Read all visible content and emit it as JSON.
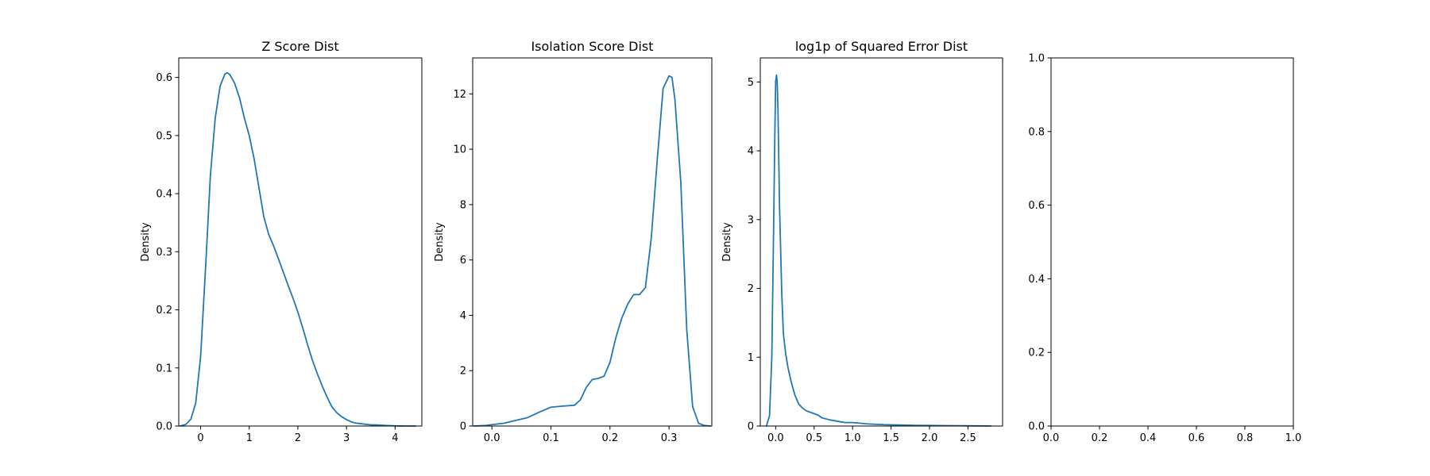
{
  "chart_data": [
    {
      "type": "line",
      "title": "Z Score Dist",
      "xlabel": "",
      "ylabel": "Density",
      "xlim": [
        -0.45,
        4.55
      ],
      "ylim": [
        0,
        0.6336
      ],
      "xticks": [
        0,
        1,
        2,
        3,
        4
      ],
      "xtick_labels": [
        "0",
        "1",
        "2",
        "3",
        "4"
      ],
      "yticks": [
        0,
        0.1,
        0.2,
        0.3,
        0.4,
        0.5,
        0.6
      ],
      "ytick_labels": [
        "0.0",
        "0.1",
        "0.2",
        "0.3",
        "0.4",
        "0.5",
        "0.6"
      ],
      "series": [
        {
          "color": "#1f77b4",
          "x": [
            -0.42,
            -0.3,
            -0.2,
            -0.1,
            0.0,
            0.1,
            0.2,
            0.3,
            0.4,
            0.5,
            0.55,
            0.6,
            0.7,
            0.8,
            0.9,
            1.0,
            1.1,
            1.2,
            1.3,
            1.4,
            1.5,
            1.6,
            1.7,
            1.8,
            1.9,
            2.0,
            2.1,
            2.2,
            2.3,
            2.4,
            2.5,
            2.6,
            2.7,
            2.8,
            2.9,
            3.0,
            3.1,
            3.2,
            3.3,
            3.4,
            3.5,
            3.6,
            3.7,
            3.8,
            3.9,
            4.0,
            4.1,
            4.2,
            4.3,
            4.42
          ],
          "values": [
            0.0,
            0.003,
            0.012,
            0.04,
            0.12,
            0.27,
            0.43,
            0.53,
            0.585,
            0.606,
            0.608,
            0.605,
            0.59,
            0.565,
            0.53,
            0.5,
            0.46,
            0.41,
            0.36,
            0.33,
            0.31,
            0.288,
            0.265,
            0.242,
            0.22,
            0.196,
            0.169,
            0.14,
            0.113,
            0.09,
            0.069,
            0.05,
            0.033,
            0.023,
            0.016,
            0.011,
            0.007,
            0.005,
            0.004,
            0.003,
            0.002,
            0.002,
            0.0015,
            0.001,
            0.0006,
            0.0003,
            0.0001,
            0.0,
            0.0,
            0.0
          ]
        }
      ]
    },
    {
      "type": "line",
      "title": "Isolation Score Dist",
      "xlabel": "",
      "ylabel": "Density",
      "xlim": [
        -0.0325,
        0.3725
      ],
      "ylim": [
        0,
        13.3
      ],
      "xticks": [
        0.0,
        0.1,
        0.2,
        0.3
      ],
      "xtick_labels": [
        "0.0",
        "0.1",
        "0.2",
        "0.3"
      ],
      "yticks": [
        0,
        2,
        4,
        6,
        8,
        10,
        12
      ],
      "ytick_labels": [
        "0",
        "2",
        "4",
        "6",
        "8",
        "10",
        "12"
      ],
      "series": [
        {
          "color": "#1f77b4",
          "x": [
            -0.03,
            -0.01,
            0.0,
            0.02,
            0.04,
            0.06,
            0.08,
            0.1,
            0.12,
            0.14,
            0.15,
            0.16,
            0.17,
            0.18,
            0.19,
            0.2,
            0.21,
            0.22,
            0.23,
            0.24,
            0.25,
            0.26,
            0.27,
            0.28,
            0.29,
            0.3,
            0.305,
            0.31,
            0.32,
            0.33,
            0.34,
            0.35,
            0.36,
            0.37
          ],
          "values": [
            0.0,
            0.02,
            0.05,
            0.1,
            0.2,
            0.3,
            0.5,
            0.68,
            0.72,
            0.75,
            0.95,
            1.4,
            1.68,
            1.72,
            1.8,
            2.3,
            3.2,
            3.9,
            4.4,
            4.75,
            4.75,
            5.0,
            6.8,
            9.6,
            12.2,
            12.65,
            12.6,
            11.8,
            8.8,
            3.5,
            0.7,
            0.1,
            0.02,
            0.0
          ]
        }
      ]
    },
    {
      "type": "line",
      "title": "log1p of Squared Error Dist",
      "xlabel": "",
      "ylabel": "Density",
      "xlim": [
        -0.2,
        2.95
      ],
      "ylim": [
        0,
        5.35
      ],
      "xticks": [
        0.0,
        0.5,
        1.0,
        1.5,
        2.0,
        2.5
      ],
      "xtick_labels": [
        "0.0",
        "0.5",
        "1.0",
        "1.5",
        "2.0",
        "2.5"
      ],
      "yticks": [
        0,
        1,
        2,
        3,
        4,
        5
      ],
      "ytick_labels": [
        "0",
        "1",
        "2",
        "3",
        "4",
        "5"
      ],
      "series": [
        {
          "color": "#1f77b4",
          "x": [
            -0.12,
            -0.08,
            -0.05,
            -0.03,
            -0.01,
            0.0,
            0.01,
            0.02,
            0.03,
            0.05,
            0.08,
            0.1,
            0.13,
            0.16,
            0.2,
            0.25,
            0.3,
            0.35,
            0.4,
            0.45,
            0.5,
            0.55,
            0.6,
            0.7,
            0.8,
            0.9,
            1.0,
            1.1,
            1.2,
            1.4,
            1.6,
            1.8,
            2.0,
            2.2,
            2.4,
            2.6,
            2.8
          ],
          "values": [
            0.0,
            0.15,
            1.0,
            2.6,
            4.3,
            5.0,
            5.1,
            5.0,
            4.6,
            3.2,
            1.9,
            1.35,
            1.05,
            0.85,
            0.65,
            0.45,
            0.32,
            0.26,
            0.22,
            0.2,
            0.18,
            0.16,
            0.12,
            0.09,
            0.07,
            0.05,
            0.05,
            0.04,
            0.03,
            0.02,
            0.015,
            0.01,
            0.008,
            0.006,
            0.004,
            0.002,
            0.0
          ]
        }
      ]
    },
    {
      "type": "line",
      "title": "",
      "xlabel": "",
      "ylabel": "",
      "xlim": [
        0,
        1
      ],
      "ylim": [
        0,
        1
      ],
      "xticks": [
        0.0,
        0.2,
        0.4,
        0.6,
        0.8,
        1.0
      ],
      "xtick_labels": [
        "0.0",
        "0.2",
        "0.4",
        "0.6",
        "0.8",
        "1.0"
      ],
      "yticks": [
        0.0,
        0.2,
        0.4,
        0.6,
        0.8,
        1.0
      ],
      "ytick_labels": [
        "0.0",
        "0.2",
        "0.4",
        "0.6",
        "0.8",
        "1.0"
      ],
      "series": []
    }
  ]
}
